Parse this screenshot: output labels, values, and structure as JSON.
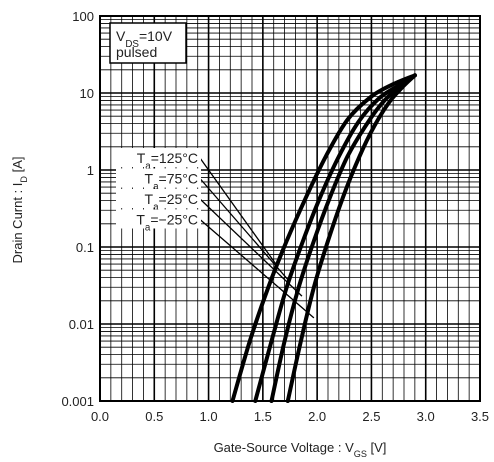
{
  "chart_data": {
    "type": "line",
    "title": "",
    "xlabel": "Gate-Source Voltage :  V_GS [V]",
    "ylabel": "Drain Curnt :  I_D [A]",
    "xlim": [
      0,
      3.5
    ],
    "ylim": [
      0.001,
      100
    ],
    "y_scale": "log",
    "grid": true,
    "x_ticks": [
      "0.0",
      "0.5",
      "1.0",
      "1.5",
      "2.0",
      "2.5",
      "3.0",
      "3.5"
    ],
    "y_ticks": [
      "0.001",
      "0.01",
      "0.1",
      "1",
      "10",
      "100"
    ],
    "conditions": [
      "V_DS=10V",
      "pulsed"
    ],
    "series": [
      {
        "name": "T_a=125°C",
        "x": [
          1.22,
          1.38,
          1.55,
          1.72,
          1.9,
          2.08,
          2.28,
          2.5,
          2.7,
          2.9
        ],
        "y": [
          0.001,
          0.006,
          0.03,
          0.12,
          0.45,
          1.5,
          4.5,
          9.0,
          13.0,
          17.0
        ]
      },
      {
        "name": "T_a=75°C",
        "x": [
          1.43,
          1.58,
          1.72,
          1.87,
          2.03,
          2.2,
          2.38,
          2.57,
          2.75,
          2.9
        ],
        "y": [
          0.001,
          0.006,
          0.03,
          0.12,
          0.45,
          1.5,
          4.2,
          8.5,
          12.5,
          17.0
        ]
      },
      {
        "name": "T_a=25°C",
        "x": [
          1.58,
          1.7,
          1.83,
          1.97,
          2.12,
          2.28,
          2.46,
          2.62,
          2.78,
          2.9
        ],
        "y": [
          0.001,
          0.006,
          0.03,
          0.12,
          0.45,
          1.5,
          4.0,
          8.0,
          12.5,
          17.0
        ]
      },
      {
        "name": "T_a=−25°C",
        "x": [
          1.73,
          1.85,
          1.97,
          2.1,
          2.24,
          2.39,
          2.53,
          2.67,
          2.8,
          2.9
        ],
        "y": [
          0.001,
          0.006,
          0.03,
          0.12,
          0.45,
          1.5,
          3.8,
          7.8,
          12.5,
          17.0
        ]
      }
    ],
    "annotations": [
      {
        "label": "T_a=125°C",
        "target": [
          1.62,
          0.06
        ]
      },
      {
        "label": "T_a=75°C",
        "target": [
          1.75,
          0.035
        ]
      },
      {
        "label": "T_a=25°C",
        "target": [
          1.86,
          0.023
        ]
      },
      {
        "label": "T_a=−25°C",
        "target": [
          1.97,
          0.012
        ]
      }
    ]
  }
}
